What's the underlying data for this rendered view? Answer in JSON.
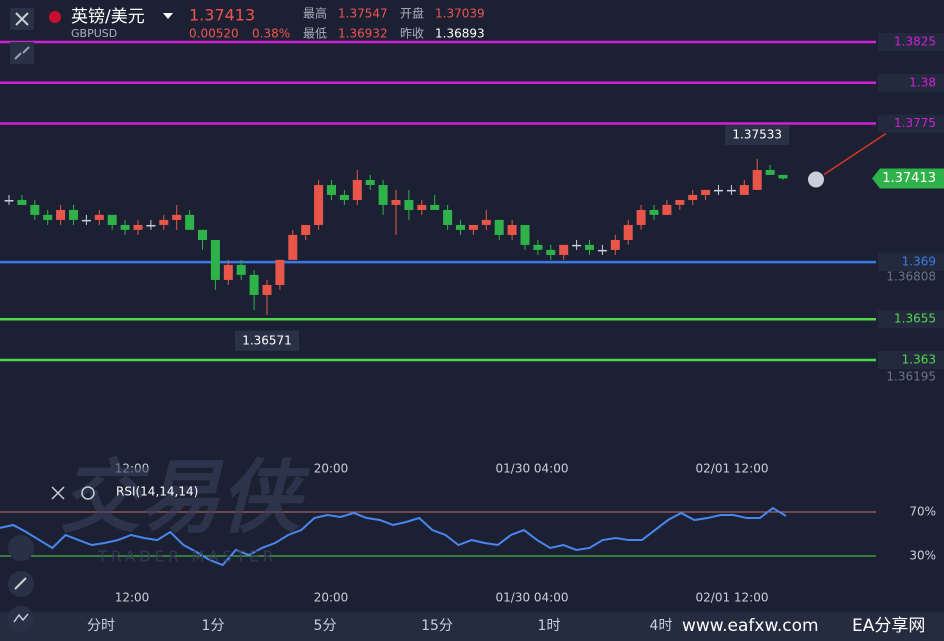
{
  "header": {
    "symbol": "英镑/美元",
    "code": "GBPUSD",
    "price": "1.37413",
    "change": "0.00520",
    "change_pct": "0.38%",
    "stats": [
      {
        "label": "最高",
        "value": "1.37547"
      },
      {
        "label": "开盘",
        "value": "1.37039"
      },
      {
        "label": "最低",
        "value": "1.36932"
      },
      {
        "label": "昨收",
        "value": "1.36893"
      }
    ]
  },
  "price_levels": [
    {
      "value": 1.3825,
      "color": "#d21fd8"
    },
    {
      "value": 1.38,
      "color": "#d21fd8"
    },
    {
      "value": 1.3775,
      "color": "#d21fd8"
    },
    {
      "value": 1.369,
      "color": "#3a7be8"
    },
    {
      "value": 1.3655,
      "color": "#52d64a"
    },
    {
      "value": 1.363,
      "color": "#52d64a"
    }
  ],
  "axis_ticks": [
    1.36808,
    1.36195
  ],
  "current_price": 1.37413,
  "high_marker": 1.37533,
  "low_marker": 1.36571,
  "candles": [
    [
      1.37281,
      1.37312,
      1.37251,
      1.37281
    ],
    [
      1.37281,
      1.37312,
      1.37251,
      1.37251
    ],
    [
      1.37251,
      1.37281,
      1.37159,
      1.3719
    ],
    [
      1.3719,
      1.3722,
      1.37128,
      1.37159
    ],
    [
      1.37159,
      1.37251,
      1.37128,
      1.3722
    ],
    [
      1.3722,
      1.37251,
      1.37128,
      1.37159
    ],
    [
      1.37159,
      1.3719,
      1.37128,
      1.37159
    ],
    [
      1.37159,
      1.3722,
      1.37128,
      1.3719
    ],
    [
      1.3719,
      1.3719,
      1.37098,
      1.37128
    ],
    [
      1.37128,
      1.37159,
      1.37067,
      1.37098
    ],
    [
      1.37098,
      1.37159,
      1.37067,
      1.37128
    ],
    [
      1.37128,
      1.37159,
      1.37098,
      1.37128
    ],
    [
      1.37128,
      1.3719,
      1.37098,
      1.37159
    ],
    [
      1.37159,
      1.37251,
      1.37098,
      1.3719
    ],
    [
      1.3719,
      1.3722,
      1.37098,
      1.37098
    ],
    [
      1.37098,
      1.37098,
      1.36975,
      1.37036
    ],
    [
      1.37036,
      1.37036,
      1.3673,
      1.36791
    ],
    [
      1.36791,
      1.36914,
      1.3676,
      1.36883
    ],
    [
      1.36883,
      1.36914,
      1.36791,
      1.36822
    ],
    [
      1.36822,
      1.36852,
      1.36607,
      1.36699
    ],
    [
      1.36699,
      1.36791,
      1.36577,
      1.3676
    ],
    [
      1.3676,
      1.36914,
      1.3673,
      1.36914
    ],
    [
      1.36914,
      1.37098,
      1.36914,
      1.37067
    ],
    [
      1.37067,
      1.37128,
      1.37036,
      1.37128
    ],
    [
      1.37128,
      1.37404,
      1.37098,
      1.37373
    ],
    [
      1.37373,
      1.37404,
      1.37281,
      1.37312
    ],
    [
      1.37312,
      1.37343,
      1.37251,
      1.37281
    ],
    [
      1.37281,
      1.37465,
      1.37251,
      1.37404
    ],
    [
      1.37404,
      1.37435,
      1.37343,
      1.37373
    ],
    [
      1.37373,
      1.37404,
      1.3719,
      1.37251
    ],
    [
      1.37251,
      1.37343,
      1.37067,
      1.37281
    ],
    [
      1.37281,
      1.37343,
      1.37159,
      1.3722
    ],
    [
      1.3722,
      1.37281,
      1.3719,
      1.37251
    ],
    [
      1.37251,
      1.37312,
      1.3722,
      1.3722
    ],
    [
      1.3722,
      1.37251,
      1.37098,
      1.37128
    ],
    [
      1.37128,
      1.37159,
      1.37067,
      1.37098
    ],
    [
      1.37098,
      1.37128,
      1.37067,
      1.37128
    ],
    [
      1.37128,
      1.3722,
      1.37098,
      1.37159
    ],
    [
      1.37159,
      1.37159,
      1.37036,
      1.37067
    ],
    [
      1.37067,
      1.37159,
      1.37036,
      1.37128
    ],
    [
      1.37128,
      1.37128,
      1.36975,
      1.37006
    ],
    [
      1.37006,
      1.37036,
      1.36944,
      1.36975
    ],
    [
      1.36975,
      1.37006,
      1.36914,
      1.36944
    ],
    [
      1.36944,
      1.37006,
      1.36914,
      1.37006
    ],
    [
      1.37006,
      1.37036,
      1.36975,
      1.37006
    ],
    [
      1.37006,
      1.37036,
      1.36944,
      1.36975
    ],
    [
      1.36975,
      1.37006,
      1.36944,
      1.36975
    ],
    [
      1.36975,
      1.37067,
      1.36944,
      1.37036
    ],
    [
      1.37036,
      1.37159,
      1.37006,
      1.37128
    ],
    [
      1.37128,
      1.37251,
      1.37098,
      1.3722
    ],
    [
      1.3722,
      1.37251,
      1.37159,
      1.3719
    ],
    [
      1.3719,
      1.37281,
      1.3719,
      1.37251
    ],
    [
      1.37251,
      1.37281,
      1.3722,
      1.37281
    ],
    [
      1.37281,
      1.37343,
      1.37251,
      1.37312
    ],
    [
      1.37312,
      1.37343,
      1.37281,
      1.37343
    ],
    [
      1.37343,
      1.37373,
      1.37312,
      1.37343
    ],
    [
      1.37343,
      1.37373,
      1.37312,
      1.37343
    ],
    [
      1.37312,
      1.37404,
      1.37312,
      1.37373
    ],
    [
      1.37343,
      1.37533,
      1.37343,
      1.37465
    ],
    [
      1.37465,
      1.37496,
      1.37435,
      1.37435
    ],
    [
      1.37435,
      1.37435,
      1.37404,
      1.37413
    ]
  ],
  "time_labels": [
    "12:00",
    "20:00",
    "01/30 04:00",
    "02/01 12:00"
  ],
  "rsi": {
    "label": "RSI(14,14,14)",
    "levels": [
      {
        "value": 70,
        "label": "70%"
      },
      {
        "value": 30,
        "label": "30%"
      }
    ],
    "values": [
      55.5,
      58.2,
      51.8,
      44.5,
      37.3,
      49.1,
      44.5,
      40,
      41.8,
      44.5,
      49.1,
      46.4,
      44.5,
      51.8,
      40,
      33.6,
      26.4,
      21.8,
      35.5,
      30.9,
      37.3,
      41.8,
      49.1,
      53.6,
      64.5,
      67.3,
      65.5,
      69.1,
      64.5,
      62.7,
      58.2,
      60.9,
      64.5,
      53.6,
      49.1,
      40,
      44.5,
      41.8,
      40,
      49.1,
      53.6,
      44.5,
      37.3,
      40,
      35.5,
      37.3,
      44.5,
      46.4,
      44.5,
      44.5,
      53.6,
      62.7,
      69.1,
      62.7,
      64.5,
      67.3,
      67.3,
      64.5,
      64.5,
      73.6,
      66.4
    ]
  },
  "periods": [
    "分时",
    "1分",
    "5分",
    "15分",
    "1时",
    "4时"
  ],
  "watermark": {
    "brand": "交易侠",
    "sub": "TRADER MASTER"
  },
  "footer": {
    "site": "www.eafxw.com",
    "name": "EA分享网"
  }
}
